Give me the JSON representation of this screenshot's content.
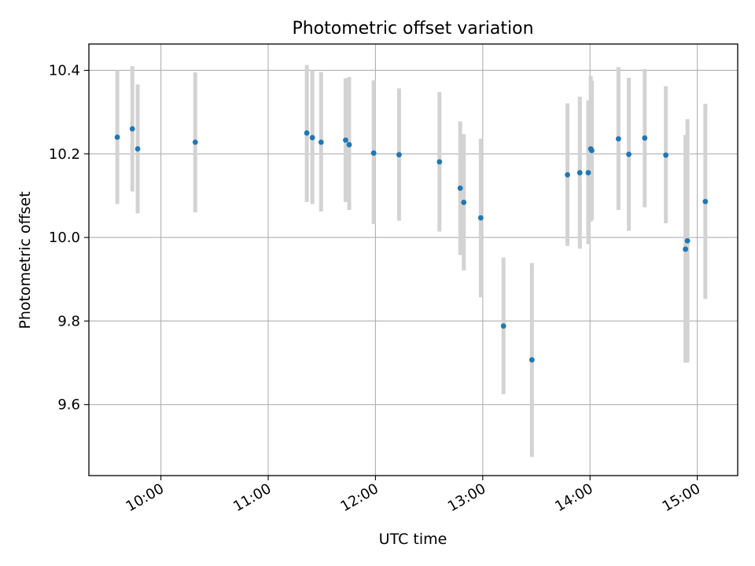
{
  "chart_data": {
    "type": "scatter",
    "title": "Photometric offset variation",
    "xlabel": "UTC time",
    "ylabel": "Photometric offset",
    "x_unit": "minutes after 09:00 UTC",
    "xlim": [
      19.7,
      382.6
    ],
    "ylim": [
      9.43,
      10.463
    ],
    "grid": true,
    "x_ticks": [
      {
        "value": 60,
        "label": "10:00"
      },
      {
        "value": 120,
        "label": "11:00"
      },
      {
        "value": 180,
        "label": "12:00"
      },
      {
        "value": 240,
        "label": "13:00"
      },
      {
        "value": 300,
        "label": "14:00"
      },
      {
        "value": 360,
        "label": "15:00"
      }
    ],
    "y_ticks": [
      {
        "value": 9.6,
        "label": "9.6"
      },
      {
        "value": 9.8,
        "label": "9.8"
      },
      {
        "value": 10.0,
        "label": "10.0"
      },
      {
        "value": 10.2,
        "label": "10.2"
      },
      {
        "value": 10.4,
        "label": "10.4"
      }
    ],
    "series": [
      {
        "name": "offset",
        "marker_color": "#1f77b4",
        "errorbar_color": "#d3d3d3",
        "points": [
          {
            "x": 35.6,
            "y": 10.24,
            "lo": 10.08,
            "hi": 10.4
          },
          {
            "x": 44.0,
            "y": 10.26,
            "lo": 10.11,
            "hi": 10.41
          },
          {
            "x": 47.0,
            "y": 10.212,
            "lo": 10.058,
            "hi": 10.366
          },
          {
            "x": 79.2,
            "y": 10.228,
            "lo": 10.06,
            "hi": 10.395
          },
          {
            "x": 141.6,
            "y": 10.25,
            "lo": 10.085,
            "hi": 10.413
          },
          {
            "x": 144.7,
            "y": 10.239,
            "lo": 10.08,
            "hi": 10.4
          },
          {
            "x": 149.6,
            "y": 10.228,
            "lo": 10.062,
            "hi": 10.396
          },
          {
            "x": 163.3,
            "y": 10.233,
            "lo": 10.085,
            "hi": 10.381
          },
          {
            "x": 165.3,
            "y": 10.222,
            "lo": 10.066,
            "hi": 10.384
          },
          {
            "x": 179.0,
            "y": 10.202,
            "lo": 10.032,
            "hi": 10.376
          },
          {
            "x": 193.2,
            "y": 10.198,
            "lo": 10.04,
            "hi": 10.357
          },
          {
            "x": 215.8,
            "y": 10.181,
            "lo": 10.014,
            "hi": 10.348
          },
          {
            "x": 227.4,
            "y": 10.118,
            "lo": 9.958,
            "hi": 10.278
          },
          {
            "x": 229.4,
            "y": 10.084,
            "lo": 9.921,
            "hi": 10.247
          },
          {
            "x": 238.9,
            "y": 10.047,
            "lo": 9.857,
            "hi": 10.236
          },
          {
            "x": 251.6,
            "y": 9.788,
            "lo": 9.625,
            "hi": 9.952
          },
          {
            "x": 267.5,
            "y": 9.707,
            "lo": 9.475,
            "hi": 9.939
          },
          {
            "x": 287.4,
            "y": 10.15,
            "lo": 9.98,
            "hi": 10.321
          },
          {
            "x": 294.3,
            "y": 10.155,
            "lo": 9.973,
            "hi": 10.337
          },
          {
            "x": 299.0,
            "y": 10.155,
            "lo": 9.984,
            "hi": 10.328
          },
          {
            "x": 300.4,
            "y": 10.212,
            "lo": 10.038,
            "hi": 10.387
          },
          {
            "x": 301.0,
            "y": 10.208,
            "lo": 10.042,
            "hi": 10.375
          },
          {
            "x": 315.9,
            "y": 10.236,
            "lo": 10.066,
            "hi": 10.408
          },
          {
            "x": 321.7,
            "y": 10.199,
            "lo": 10.016,
            "hi": 10.382
          },
          {
            "x": 330.6,
            "y": 10.238,
            "lo": 10.072,
            "hi": 10.403
          },
          {
            "x": 342.4,
            "y": 10.197,
            "lo": 10.034,
            "hi": 10.362
          },
          {
            "x": 353.4,
            "y": 9.972,
            "lo": 9.7,
            "hi": 10.245
          },
          {
            "x": 354.5,
            "y": 9.992,
            "lo": 9.701,
            "hi": 10.283
          },
          {
            "x": 364.5,
            "y": 10.086,
            "lo": 9.853,
            "hi": 10.32
          }
        ]
      }
    ]
  }
}
